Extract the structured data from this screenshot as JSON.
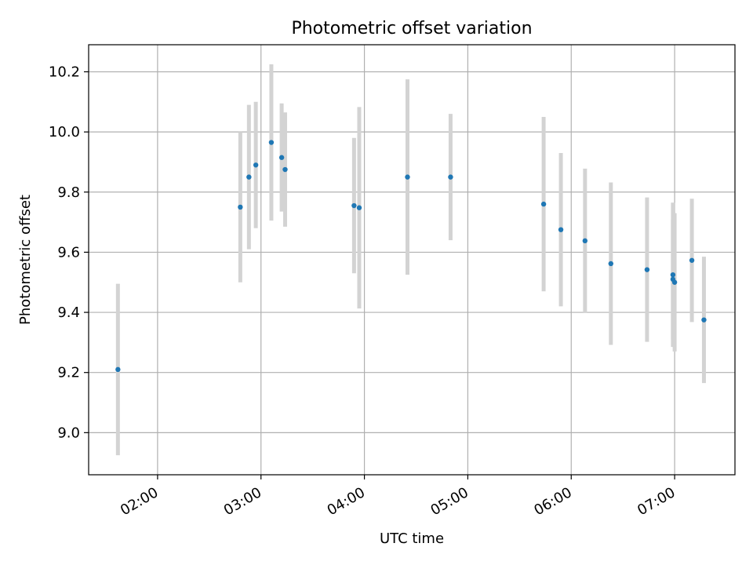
{
  "chart_data": {
    "type": "scatter",
    "title": "Photometric offset variation",
    "xlabel": "UTC time",
    "ylabel": "Photometric offset",
    "grid": true,
    "x_ticks": [
      "02:00",
      "03:00",
      "04:00",
      "05:00",
      "06:00",
      "07:00"
    ],
    "x_tick_values": [
      "02:00",
      "03:00",
      "04:00",
      "05:00",
      "06:00",
      "07:00"
    ],
    "y_ticks": [
      "9.0",
      "9.2",
      "9.4",
      "9.6",
      "9.8",
      "10.0",
      "10.2"
    ],
    "y_tick_values": [
      9.0,
      9.2,
      9.4,
      9.6,
      9.8,
      10.0,
      10.2
    ],
    "xlim": [
      "01:20",
      "07:35"
    ],
    "ylim": [
      8.86,
      10.29
    ],
    "colors": {
      "point": "#1f77b4",
      "errorbar": "#d3d3d3",
      "grid": "#b0b0b0"
    },
    "points": [
      {
        "x": "01:37",
        "y": 9.21,
        "yerr": 0.285
      },
      {
        "x": "02:48",
        "y": 9.75,
        "yerr": 0.25
      },
      {
        "x": "02:53",
        "y": 9.85,
        "yerr": 0.24
      },
      {
        "x": "02:57",
        "y": 9.89,
        "yerr": 0.21
      },
      {
        "x": "03:06",
        "y": 9.965,
        "yerr": 0.26
      },
      {
        "x": "03:12",
        "y": 9.915,
        "yerr": 0.18
      },
      {
        "x": "03:14",
        "y": 9.875,
        "yerr": 0.19
      },
      {
        "x": "03:54",
        "y": 9.755,
        "yerr": 0.225
      },
      {
        "x": "03:57",
        "y": 9.748,
        "yerr": 0.335
      },
      {
        "x": "04:25",
        "y": 9.85,
        "yerr": 0.325
      },
      {
        "x": "04:50",
        "y": 9.85,
        "yerr": 0.21
      },
      {
        "x": "05:44",
        "y": 9.76,
        "yerr": 0.29
      },
      {
        "x": "05:54",
        "y": 9.675,
        "yerr": 0.255
      },
      {
        "x": "06:08",
        "y": 9.638,
        "yerr": 0.24
      },
      {
        "x": "06:23",
        "y": 9.562,
        "yerr": 0.27
      },
      {
        "x": "06:44",
        "y": 9.542,
        "yerr": 0.24
      },
      {
        "x": "06:59",
        "y": 9.525,
        "yerr": 0.24
      },
      {
        "x": "06:59",
        "y": 9.51,
        "yerr": 0.2
      },
      {
        "x": "07:00",
        "y": 9.5,
        "yerr": 0.23
      },
      {
        "x": "07:10",
        "y": 9.573,
        "yerr": 0.205
      },
      {
        "x": "07:17",
        "y": 9.375,
        "yerr": 0.21
      }
    ]
  }
}
